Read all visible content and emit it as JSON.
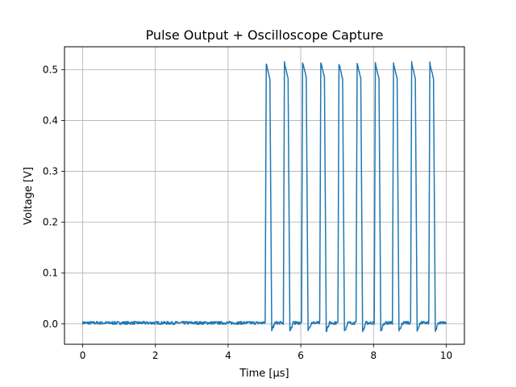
{
  "chart_data": {
    "type": "line",
    "title": "Pulse Output + Oscilloscope Capture",
    "xlabel": "Time [μs]",
    "ylabel": "Voltage [V]",
    "xlim": [
      -0.5,
      10.5
    ],
    "ylim": [
      -0.04,
      0.545
    ],
    "xticks": [
      0,
      2,
      4,
      6,
      8,
      10
    ],
    "yticks": [
      0.0,
      0.1,
      0.2,
      0.3,
      0.4,
      0.5
    ],
    "grid": true,
    "series": [
      {
        "color": "#1f77b4",
        "pulse_starts": [
          5.05,
          5.55,
          6.05,
          6.55,
          7.05,
          7.55,
          8.05,
          8.55,
          9.05,
          9.55
        ],
        "pulse_peaks": [
          0.512,
          0.513,
          0.515,
          0.515,
          0.512,
          0.513,
          0.512,
          0.512,
          0.513,
          0.512
        ],
        "pulse_width": 0.1,
        "baseline": 0.002,
        "undershoot": -0.014,
        "x_range": [
          0,
          10
        ]
      }
    ]
  }
}
